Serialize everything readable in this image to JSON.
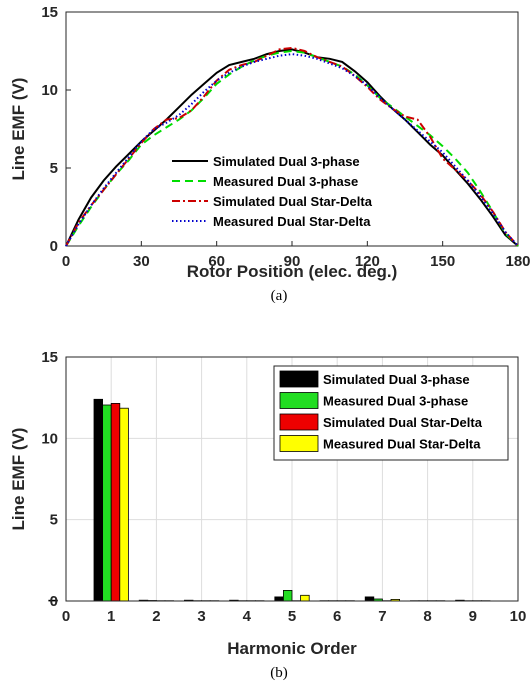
{
  "chart_data": [
    {
      "type": "line",
      "panel_caption": "(a)",
      "xlabel": "Rotor Position (elec. deg.)",
      "ylabel": "Line EMF (V)",
      "xlim": [
        0,
        180
      ],
      "ylim": [
        0,
        15
      ],
      "xticks": [
        "0",
        "30",
        "60",
        "90",
        "120",
        "150",
        "180"
      ],
      "yticks": [
        "0",
        "5",
        "10",
        "15"
      ],
      "grid": false,
      "legend_position": "bottom-center",
      "series": [
        {
          "name": "Simulated Dual 3-phase",
          "color": "#000000",
          "dash": "solid",
          "x": [
            0,
            5,
            10,
            15,
            20,
            25,
            30,
            35,
            40,
            45,
            50,
            55,
            60,
            65,
            70,
            75,
            80,
            85,
            90,
            95,
            100,
            105,
            110,
            115,
            120,
            125,
            130,
            135,
            140,
            145,
            150,
            155,
            160,
            165,
            170,
            175,
            180
          ],
          "y": [
            0,
            1.7,
            3.1,
            4.2,
            5.1,
            5.9,
            6.7,
            7.4,
            8.1,
            8.9,
            9.7,
            10.4,
            11.1,
            11.6,
            11.8,
            12.0,
            12.3,
            12.5,
            12.6,
            12.4,
            12.1,
            12.0,
            11.8,
            11.2,
            10.5,
            9.6,
            8.8,
            8.1,
            7.3,
            6.5,
            5.8,
            4.9,
            4.0,
            3.0,
            1.9,
            0.7,
            0
          ]
        },
        {
          "name": "Measured Dual 3-phase",
          "color": "#00dd00",
          "dash": "dashed",
          "x": [
            0,
            5,
            10,
            15,
            20,
            25,
            30,
            35,
            40,
            45,
            50,
            55,
            60,
            65,
            70,
            75,
            80,
            85,
            90,
            95,
            100,
            105,
            110,
            115,
            120,
            125,
            130,
            135,
            140,
            145,
            150,
            155,
            160,
            165,
            170,
            175,
            180
          ],
          "y": [
            0,
            1.3,
            2.5,
            3.6,
            4.6,
            5.5,
            6.5,
            7.1,
            7.6,
            8.1,
            8.7,
            9.5,
            10.4,
            11.0,
            11.5,
            11.9,
            12.2,
            12.4,
            12.5,
            12.4,
            12.1,
            11.8,
            11.5,
            11.0,
            10.3,
            9.5,
            8.9,
            8.3,
            7.7,
            7.1,
            6.4,
            5.6,
            4.7,
            3.5,
            2.2,
            0.8,
            0
          ]
        },
        {
          "name": "Simulated Dual Star-Delta",
          "color": "#cc0000",
          "dash": "dashdot",
          "x": [
            0,
            5,
            10,
            15,
            20,
            25,
            30,
            35,
            40,
            45,
            50,
            55,
            60,
            65,
            70,
            75,
            80,
            85,
            90,
            95,
            100,
            105,
            110,
            115,
            120,
            125,
            130,
            135,
            140,
            145,
            150,
            155,
            160,
            165,
            170,
            175,
            180
          ],
          "y": [
            0,
            1.5,
            2.6,
            3.6,
            4.6,
            5.6,
            6.6,
            7.5,
            8.1,
            8.2,
            8.7,
            9.6,
            10.6,
            11.3,
            11.6,
            11.8,
            12.2,
            12.6,
            12.7,
            12.5,
            12.1,
            11.8,
            11.5,
            10.9,
            10.2,
            9.4,
            8.8,
            8.3,
            8.1,
            7.0,
            5.6,
            4.9,
            4.2,
            3.3,
            2.2,
            0.9,
            0
          ]
        },
        {
          "name": "Measured Dual Star-Delta",
          "color": "#0000cc",
          "dash": "dotted",
          "x": [
            0,
            5,
            10,
            15,
            20,
            25,
            30,
            35,
            40,
            45,
            50,
            55,
            60,
            65,
            70,
            75,
            80,
            85,
            90,
            95,
            100,
            105,
            110,
            115,
            120,
            125,
            130,
            135,
            140,
            145,
            150,
            155,
            160,
            165,
            170,
            175,
            180
          ],
          "y": [
            0,
            1.4,
            2.6,
            3.7,
            4.7,
            5.7,
            6.7,
            7.5,
            7.9,
            8.4,
            9.1,
            9.9,
            10.6,
            11.1,
            11.5,
            11.8,
            12.0,
            12.2,
            12.3,
            12.2,
            12.0,
            11.7,
            11.4,
            10.9,
            10.3,
            9.5,
            8.8,
            8.1,
            7.4,
            6.7,
            6.0,
            5.1,
            4.2,
            3.2,
            2.1,
            0.9,
            0
          ]
        }
      ]
    },
    {
      "type": "bar",
      "panel_caption": "(b)",
      "xlabel": "Harmonic Order",
      "ylabel": "Line EMF (V)",
      "xlim": [
        0,
        10
      ],
      "ylim": [
        0,
        15
      ],
      "xticks": [
        "0",
        "1",
        "2",
        "3",
        "4",
        "5",
        "6",
        "7",
        "8",
        "9",
        "10"
      ],
      "yticks": [
        "0",
        "5",
        "10",
        "15"
      ],
      "grid": true,
      "legend_position": "top-right",
      "categories": [
        0,
        1,
        2,
        3,
        4,
        5,
        6,
        7,
        8,
        9
      ],
      "series": [
        {
          "name": "Simulated Dual 3-phase",
          "color": "#000000",
          "values": [
            0.05,
            12.4,
            0.05,
            0.05,
            0.05,
            0.25,
            0.02,
            0.25,
            0.02,
            0.05
          ]
        },
        {
          "name": "Measured Dual 3-phase",
          "color": "#22dd22",
          "values": [
            0.0,
            12.05,
            0.03,
            0.02,
            0.02,
            0.65,
            0.02,
            0.12,
            0.02,
            0.02
          ]
        },
        {
          "name": "Simulated Dual Star-Delta",
          "color": "#ee0000",
          "values": [
            0.0,
            12.15,
            0.02,
            0.02,
            0.02,
            0.02,
            0.02,
            0.02,
            0.02,
            0.02
          ]
        },
        {
          "name": "Measured Dual Star-Delta",
          "color": "#ffff00",
          "values": [
            0.0,
            11.85,
            0.02,
            0.02,
            0.02,
            0.35,
            0.02,
            0.1,
            0.02,
            0.02
          ]
        }
      ]
    }
  ]
}
